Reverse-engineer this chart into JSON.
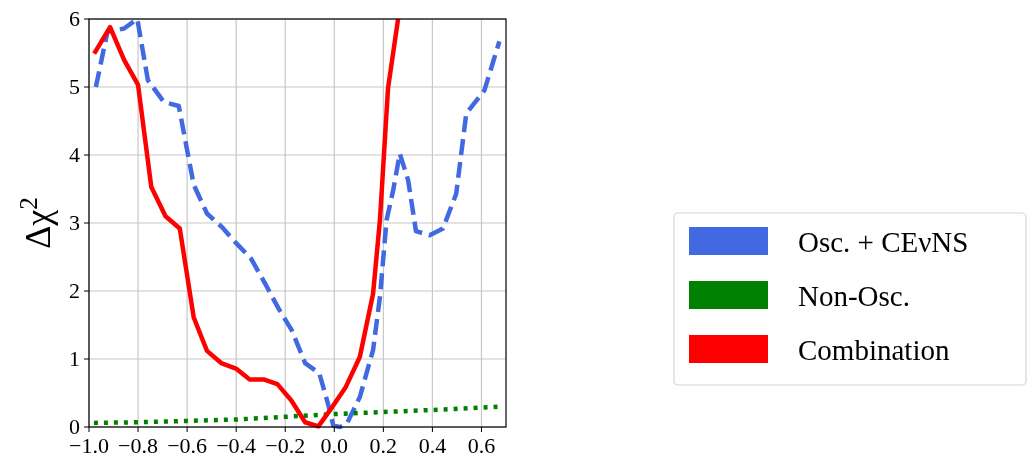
{
  "chart_data": {
    "type": "line",
    "ylabel": "Δχ$^{2}$",
    "xlim": [
      -1.0,
      0.7
    ],
    "ylim": [
      0,
      6
    ],
    "xticks": [
      {
        "value": -1.0,
        "label": "−1.0"
      },
      {
        "value": -0.8,
        "label": "−0.8"
      },
      {
        "value": -0.6,
        "label": "−0.6"
      },
      {
        "value": -0.4,
        "label": "−0.4"
      },
      {
        "value": -0.2,
        "label": "−0.2"
      },
      {
        "value": 0.0,
        "label": "0.0"
      },
      {
        "value": 0.2,
        "label": "0.2"
      },
      {
        "value": 0.4,
        "label": "0.4"
      },
      {
        "value": 0.6,
        "label": "0.6"
      }
    ],
    "yticks": [
      0,
      1,
      2,
      3,
      4,
      5,
      6
    ],
    "grid": true,
    "legend": "right",
    "series": [
      {
        "name": "Osc. + CEνNS",
        "color": "#4169e1",
        "line_style": "dashed",
        "x": [
          -0.972,
          -0.925,
          -0.857,
          -0.803,
          -0.76,
          -0.695,
          -0.634,
          -0.573,
          -0.519,
          -0.458,
          -0.399,
          -0.34,
          -0.282,
          -0.227,
          -0.173,
          -0.119,
          -0.061,
          -0.024,
          -0.004,
          0.023,
          0.05,
          0.104,
          0.158,
          0.186,
          0.213,
          0.24,
          0.267,
          0.301,
          0.333,
          0.389,
          0.443,
          0.497,
          0.538,
          0.612,
          0.673
        ],
        "values": [
          5.0,
          5.81,
          5.86,
          6.0,
          5.1,
          4.78,
          4.72,
          3.56,
          3.14,
          2.94,
          2.7,
          2.48,
          2.11,
          1.74,
          1.42,
          0.94,
          0.79,
          0.32,
          0.02,
          0,
          0.04,
          0.44,
          1.13,
          1.91,
          3.04,
          3.48,
          4.02,
          3.63,
          2.88,
          2.82,
          2.92,
          3.43,
          4.61,
          4.95,
          5.67
        ]
      },
      {
        "name": "Non-Osc.",
        "color": "#008000",
        "line_style": "dotted",
        "x": [
          -0.98,
          -0.8,
          -0.6,
          -0.4,
          -0.2,
          0.0,
          0.2,
          0.4,
          0.68
        ],
        "values": [
          0.06,
          0.07,
          0.09,
          0.11,
          0.15,
          0.19,
          0.22,
          0.25,
          0.3
        ]
      },
      {
        "name": "Combination",
        "color": "#ff0000",
        "line_style": "solid",
        "x": [
          -0.979,
          -0.914,
          -0.857,
          -0.8,
          -0.746,
          -0.688,
          -0.63,
          -0.573,
          -0.519,
          -0.461,
          -0.401,
          -0.345,
          -0.288,
          -0.232,
          -0.175,
          -0.119,
          -0.065,
          -0.007,
          0.047,
          0.104,
          0.158,
          0.186,
          0.219,
          0.26
        ],
        "values": [
          5.49,
          5.88,
          5.4,
          5.03,
          3.53,
          3.1,
          2.92,
          1.61,
          1.12,
          0.94,
          0.86,
          0.7,
          0.7,
          0.63,
          0.39,
          0.07,
          0.01,
          0.3,
          0.59,
          1.03,
          1.96,
          3.04,
          4.98,
          6.0
        ]
      }
    ]
  }
}
